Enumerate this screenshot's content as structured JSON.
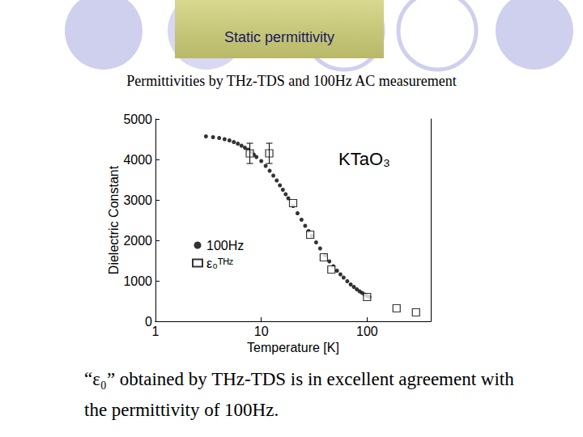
{
  "header": {
    "title": "Static permittivity"
  },
  "subtitle": "Permittivities by THz-TDS and 100Hz AC measurement",
  "footer": "“ε₀” obtained by THz-TDS is in excellent agreement with the permittivity of 100Hz.",
  "chart_data": {
    "type": "scatter",
    "annotation": "KTaO₃",
    "x_label": "Temperature [K]",
    "y_label": "Dielectric Constant",
    "log": "x",
    "grid": false,
    "legend": "left",
    "xlim": [
      1,
      400
    ],
    "xticks": [
      1,
      10,
      100
    ],
    "ylim": [
      0,
      5000
    ],
    "yticks": [
      0,
      1000,
      2000,
      3000,
      4000,
      5000
    ],
    "series": [
      {
        "name": "100Hz",
        "color": "#000000",
        "marker": "circle",
        "x": [
          3,
          3.5,
          4,
          4.5,
          5,
          5.5,
          6,
          6.5,
          7,
          7.5,
          8,
          8.5,
          9,
          10,
          11,
          12,
          13,
          14,
          15,
          16,
          17,
          18,
          20,
          22,
          24,
          26,
          28,
          30,
          33,
          36,
          40,
          44,
          48,
          52,
          56,
          60,
          65,
          70,
          75,
          80,
          85,
          90,
          95,
          100,
          105
        ],
        "values": [
          4570,
          4550,
          4530,
          4500,
          4470,
          4430,
          4390,
          4340,
          4290,
          4240,
          4180,
          4120,
          4060,
          3960,
          3840,
          3720,
          3600,
          3480,
          3360,
          3250,
          3140,
          3040,
          2850,
          2670,
          2510,
          2360,
          2230,
          2110,
          1950,
          1800,
          1630,
          1480,
          1360,
          1250,
          1160,
          1080,
          990,
          910,
          850,
          790,
          740,
          700,
          660,
          630,
          600
        ]
      },
      {
        "name": "ε₀ᵀᴴᶻ",
        "color": "#000000",
        "marker": "square_open",
        "x": [
          7.8,
          11.9,
          20,
          29,
          39,
          46,
          100,
          190,
          290
        ],
        "values": [
          4150,
          4150,
          2920,
          2140,
          1580,
          1280,
          600,
          320,
          220
        ],
        "errors": [
          250,
          250,
          null,
          null,
          null,
          null,
          null,
          null,
          null
        ]
      }
    ]
  }
}
